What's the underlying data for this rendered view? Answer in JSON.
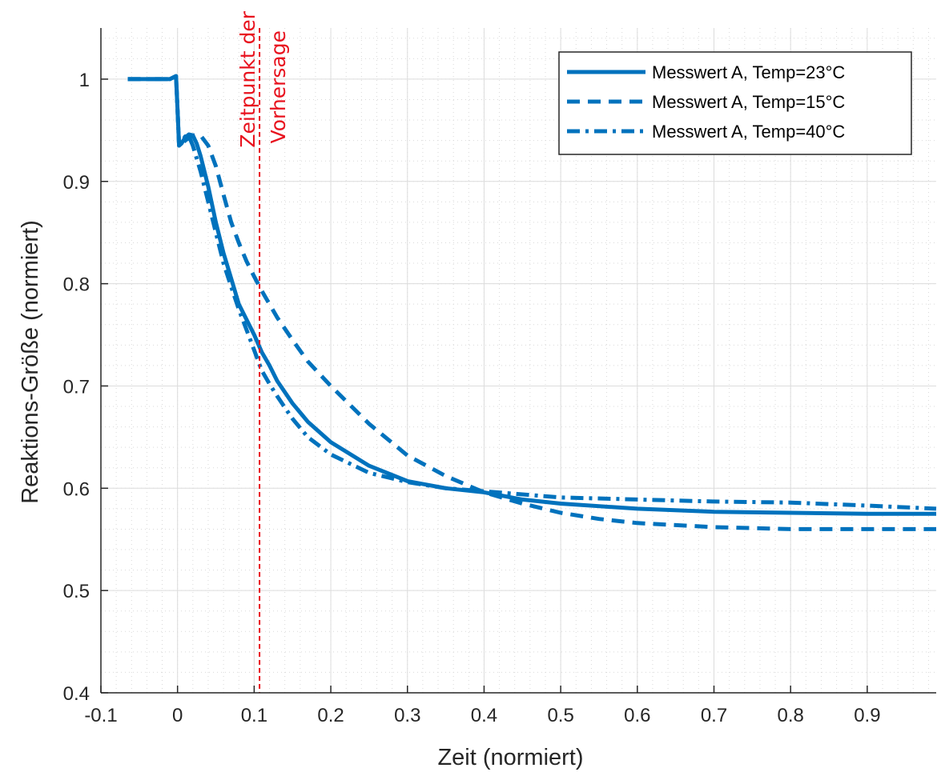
{
  "chart_data": {
    "type": "line",
    "xlabel": "Zeit (normiert)",
    "ylabel": "Reaktions-Größe (normiert)",
    "xlim": [
      -0.1,
      0.99
    ],
    "ylim": [
      0.4,
      1.05
    ],
    "x_ticks": [
      -0.1,
      0,
      0.1,
      0.2,
      0.3,
      0.4,
      0.5,
      0.6,
      0.7,
      0.8,
      0.9
    ],
    "x_tick_labels": [
      "-0.1",
      "0",
      "0.1",
      "0.2",
      "0.3",
      "0.4",
      "0.5",
      "0.6",
      "0.7",
      "0.8",
      "0.9"
    ],
    "y_ticks": [
      0.4,
      0.5,
      0.6,
      0.7,
      0.8,
      0.9,
      1
    ],
    "y_tick_labels": [
      "0.4",
      "0.5",
      "0.6",
      "0.7",
      "0.8",
      "0.9",
      "1"
    ],
    "grid": true,
    "minor_grid": true,
    "legend_position": "top-right",
    "line_color": "#0072bd",
    "series": [
      {
        "name": "Messwert A, Temp=23°C",
        "style": "solid",
        "x": [
          -0.065,
          -0.01,
          -0.002,
          0.0,
          0.002,
          0.005,
          0.01,
          0.015,
          0.02,
          0.025,
          0.03,
          0.04,
          0.05,
          0.06,
          0.07,
          0.08,
          0.09,
          0.1,
          0.11,
          0.12,
          0.13,
          0.15,
          0.17,
          0.2,
          0.25,
          0.3,
          0.35,
          0.4,
          0.45,
          0.5,
          0.6,
          0.7,
          0.8,
          0.9,
          0.99
        ],
        "y": [
          1.0,
          1.0,
          1.003,
          0.97,
          0.935,
          0.937,
          0.943,
          0.946,
          0.945,
          0.937,
          0.925,
          0.895,
          0.86,
          0.83,
          0.805,
          0.78,
          0.765,
          0.75,
          0.733,
          0.72,
          0.705,
          0.683,
          0.665,
          0.645,
          0.622,
          0.607,
          0.6,
          0.596,
          0.589,
          0.585,
          0.58,
          0.577,
          0.576,
          0.575,
          0.575
        ]
      },
      {
        "name": "Messwert A, Temp=15°C",
        "style": "dashed",
        "x": [
          -0.065,
          -0.01,
          -0.002,
          0.0,
          0.002,
          0.005,
          0.01,
          0.02,
          0.03,
          0.04,
          0.05,
          0.06,
          0.07,
          0.08,
          0.09,
          0.1,
          0.11,
          0.12,
          0.13,
          0.15,
          0.17,
          0.2,
          0.25,
          0.3,
          0.35,
          0.4,
          0.45,
          0.5,
          0.55,
          0.6,
          0.7,
          0.8,
          0.9,
          0.99
        ],
        "y": [
          1.0,
          1.0,
          1.003,
          0.97,
          0.935,
          0.936,
          0.94,
          0.945,
          0.945,
          0.935,
          0.915,
          0.887,
          0.86,
          0.84,
          0.822,
          0.807,
          0.793,
          0.78,
          0.767,
          0.745,
          0.724,
          0.7,
          0.663,
          0.632,
          0.612,
          0.596,
          0.585,
          0.576,
          0.57,
          0.566,
          0.562,
          0.56,
          0.56,
          0.56
        ]
      },
      {
        "name": "Messwert A, Temp=40°C",
        "style": "dashdot",
        "x": [
          -0.065,
          -0.01,
          -0.002,
          0.0,
          0.002,
          0.005,
          0.01,
          0.015,
          0.02,
          0.03,
          0.04,
          0.05,
          0.06,
          0.07,
          0.08,
          0.09,
          0.1,
          0.11,
          0.12,
          0.13,
          0.15,
          0.17,
          0.2,
          0.25,
          0.3,
          0.35,
          0.4,
          0.45,
          0.5,
          0.6,
          0.7,
          0.8,
          0.9,
          0.99
        ],
        "y": [
          1.0,
          1.0,
          1.003,
          0.97,
          0.935,
          0.938,
          0.944,
          0.944,
          0.935,
          0.91,
          0.88,
          0.85,
          0.82,
          0.797,
          0.775,
          0.755,
          0.735,
          0.715,
          0.702,
          0.69,
          0.668,
          0.65,
          0.633,
          0.615,
          0.606,
          0.6,
          0.597,
          0.594,
          0.591,
          0.589,
          0.587,
          0.586,
          0.583,
          0.58
        ]
      }
    ],
    "annotation": {
      "text_lines": [
        "Zeitpunkt der",
        "Vorhersage"
      ],
      "x": 0.107,
      "color": "#e8121e",
      "style": "dashed"
    }
  }
}
